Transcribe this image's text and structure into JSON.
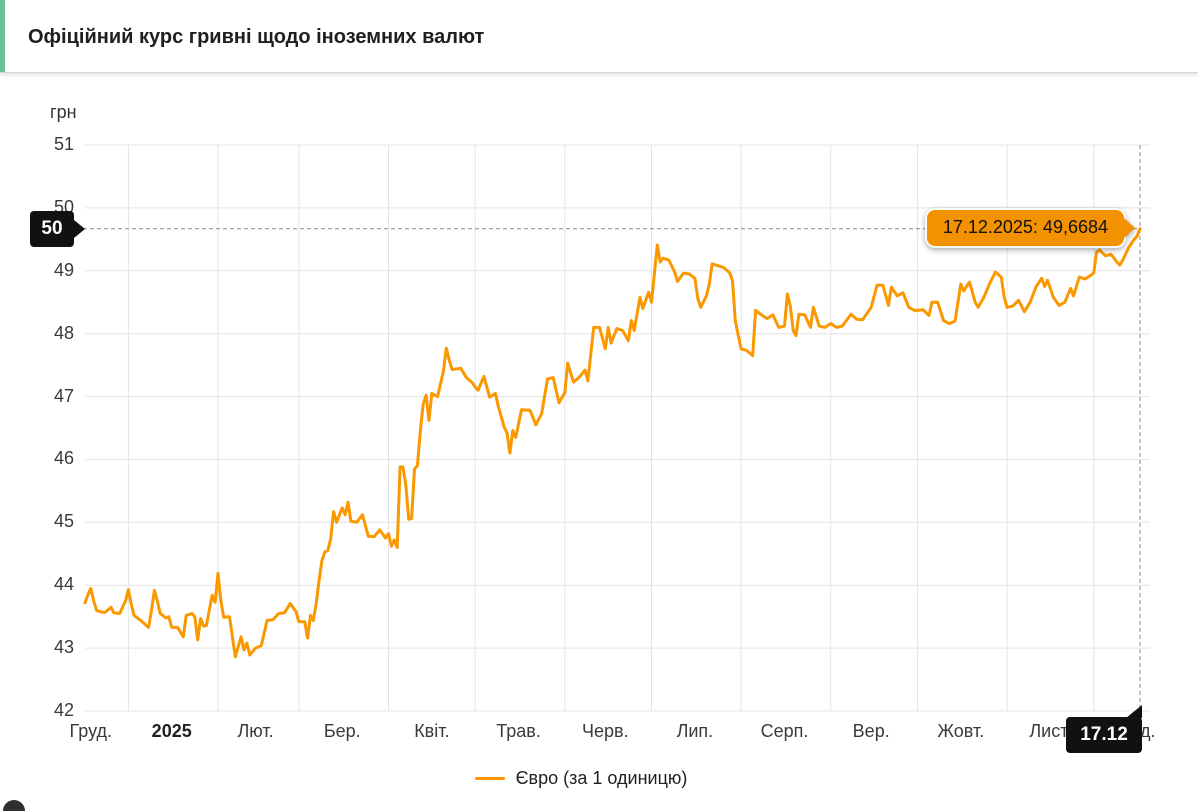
{
  "header": {
    "title": "Офіційний курс гривні щодо іноземних валют"
  },
  "chart": {
    "unit_label": "грн"
  },
  "crosshair": {
    "y_label": "50",
    "x_label": "17.12"
  },
  "tooltip": {
    "text": "17.12.2025: 49,6684"
  },
  "legend": {
    "items": [
      {
        "label": "Євро (за 1 одиницю)",
        "color": "#fb9800"
      }
    ]
  },
  "colors": {
    "accent_green": "#68c295",
    "line_orange": "#fb9800",
    "tooltip_orange": "#f39200",
    "grid": "#e4e4e4",
    "crosshair": "#8a8a8a",
    "badge_black": "#111111"
  },
  "chart_data": {
    "type": "line",
    "title": "Офіційний курс гривні щодо іноземних валют",
    "ylabel": "грн",
    "ylim": [
      42,
      51
    ],
    "y_ticks": [
      42,
      43,
      44,
      45,
      46,
      47,
      48,
      49,
      50,
      51
    ],
    "xlim": [
      "2024-12-17",
      "2025-12-17"
    ],
    "x_gridlines": [
      "2025-01-01",
      "2025-02-01",
      "2025-03-01",
      "2025-04-01",
      "2025-05-01",
      "2025-06-01",
      "2025-07-01",
      "2025-08-01",
      "2025-09-01",
      "2025-10-01",
      "2025-11-01",
      "2025-12-01"
    ],
    "x_ticks": [
      {
        "label": "Груд.",
        "center": "2024-12-19",
        "bold": false
      },
      {
        "label": "2025",
        "center": "2025-01-16",
        "bold": true
      },
      {
        "label": "Лют.",
        "center": "2025-02-14",
        "bold": false
      },
      {
        "label": "Бер.",
        "center": "2025-03-16",
        "bold": false
      },
      {
        "label": "Квіт.",
        "center": "2025-04-16",
        "bold": false
      },
      {
        "label": "Трав.",
        "center": "2025-05-16",
        "bold": false
      },
      {
        "label": "Черв.",
        "center": "2025-06-15",
        "bold": false
      },
      {
        "label": "Лип.",
        "center": "2025-07-16",
        "bold": false
      },
      {
        "label": "Серп.",
        "center": "2025-08-16",
        "bold": false
      },
      {
        "label": "Вер.",
        "center": "2025-09-15",
        "bold": false
      },
      {
        "label": "Жовт.",
        "center": "2025-10-16",
        "bold": false
      },
      {
        "label": "Лист.",
        "center": "2025-11-16",
        "bold": false
      },
      {
        "label": "Груд.",
        "center": "2025-12-15",
        "bold": false
      }
    ],
    "legend_position": "bottom",
    "grid": true,
    "last_point": {
      "date": "2025-12-17",
      "value": 49.6684,
      "display": "17.12.2025: 49,6684"
    },
    "series": [
      {
        "name": "Євро (за 1 одиницю)",
        "color": "#fb9800",
        "points": [
          [
            "2024-12-17",
            43.72
          ],
          [
            "2024-12-18",
            43.85
          ],
          [
            "2024-12-19",
            43.95
          ],
          [
            "2024-12-20",
            43.75
          ],
          [
            "2024-12-21",
            43.6
          ],
          [
            "2024-12-23",
            43.57
          ],
          [
            "2024-12-24",
            43.57
          ],
          [
            "2024-12-26",
            43.65
          ],
          [
            "2024-12-27",
            43.56
          ],
          [
            "2024-12-29",
            43.55
          ],
          [
            "2024-12-31",
            43.75
          ],
          [
            "2025-01-01",
            43.93
          ],
          [
            "2025-01-02",
            43.7
          ],
          [
            "2025-01-03",
            43.52
          ],
          [
            "2025-01-05",
            43.45
          ],
          [
            "2025-01-08",
            43.33
          ],
          [
            "2025-01-09",
            43.6
          ],
          [
            "2025-01-10",
            43.92
          ],
          [
            "2025-01-11",
            43.75
          ],
          [
            "2025-01-12",
            43.55
          ],
          [
            "2025-01-14",
            43.48
          ],
          [
            "2025-01-15",
            43.5
          ],
          [
            "2025-01-16",
            43.33
          ],
          [
            "2025-01-18",
            43.33
          ],
          [
            "2025-01-20",
            43.18
          ],
          [
            "2025-01-21",
            43.52
          ],
          [
            "2025-01-23",
            43.55
          ],
          [
            "2025-01-24",
            43.5
          ],
          [
            "2025-01-25",
            43.13
          ],
          [
            "2025-01-26",
            43.47
          ],
          [
            "2025-01-27",
            43.35
          ],
          [
            "2025-01-28",
            43.36
          ],
          [
            "2025-01-30",
            43.84
          ],
          [
            "2025-01-31",
            43.73
          ],
          [
            "2025-02-01",
            44.19
          ],
          [
            "2025-02-02",
            43.76
          ],
          [
            "2025-02-03",
            43.49
          ],
          [
            "2025-02-05",
            43.5
          ],
          [
            "2025-02-07",
            42.86
          ],
          [
            "2025-02-09",
            43.18
          ],
          [
            "2025-02-10",
            42.97
          ],
          [
            "2025-02-11",
            43.08
          ],
          [
            "2025-02-12",
            42.89
          ],
          [
            "2025-02-14",
            43.0
          ],
          [
            "2025-02-16",
            43.04
          ],
          [
            "2025-02-18",
            43.44
          ],
          [
            "2025-02-20",
            43.45
          ],
          [
            "2025-02-22",
            43.55
          ],
          [
            "2025-02-24",
            43.56
          ],
          [
            "2025-02-26",
            43.71
          ],
          [
            "2025-02-28",
            43.58
          ],
          [
            "2025-03-01",
            43.42
          ],
          [
            "2025-03-03",
            43.42
          ],
          [
            "2025-03-04",
            43.16
          ],
          [
            "2025-03-05",
            43.52
          ],
          [
            "2025-03-06",
            43.44
          ],
          [
            "2025-03-07",
            43.71
          ],
          [
            "2025-03-08",
            44.08
          ],
          [
            "2025-03-09",
            44.4
          ],
          [
            "2025-03-10",
            44.53
          ],
          [
            "2025-03-11",
            44.55
          ],
          [
            "2025-03-12",
            44.74
          ],
          [
            "2025-03-13",
            45.17
          ],
          [
            "2025-03-14",
            45.0
          ],
          [
            "2025-03-16",
            45.23
          ],
          [
            "2025-03-17",
            45.12
          ],
          [
            "2025-03-18",
            45.32
          ],
          [
            "2025-03-19",
            45.02
          ],
          [
            "2025-03-21",
            45.0
          ],
          [
            "2025-03-23",
            45.12
          ],
          [
            "2025-03-25",
            44.78
          ],
          [
            "2025-03-27",
            44.77
          ],
          [
            "2025-03-29",
            44.88
          ],
          [
            "2025-03-31",
            44.75
          ],
          [
            "2025-04-01",
            44.82
          ],
          [
            "2025-04-02",
            44.62
          ],
          [
            "2025-04-03",
            44.72
          ],
          [
            "2025-04-04",
            44.6
          ],
          [
            "2025-04-05",
            45.88
          ],
          [
            "2025-04-06",
            45.88
          ],
          [
            "2025-04-07",
            45.6
          ],
          [
            "2025-04-08",
            45.05
          ],
          [
            "2025-04-09",
            45.06
          ],
          [
            "2025-04-10",
            45.85
          ],
          [
            "2025-04-11",
            45.9
          ],
          [
            "2025-04-12",
            46.45
          ],
          [
            "2025-04-13",
            46.88
          ],
          [
            "2025-04-14",
            47.02
          ],
          [
            "2025-04-15",
            46.62
          ],
          [
            "2025-04-16",
            47.05
          ],
          [
            "2025-04-18",
            47.0
          ],
          [
            "2025-04-20",
            47.4
          ],
          [
            "2025-04-21",
            47.77
          ],
          [
            "2025-04-22",
            47.58
          ],
          [
            "2025-04-23",
            47.43
          ],
          [
            "2025-04-26",
            47.45
          ],
          [
            "2025-04-28",
            47.3
          ],
          [
            "2025-04-30",
            47.22
          ],
          [
            "2025-05-01",
            47.15
          ],
          [
            "2025-05-02",
            47.1
          ],
          [
            "2025-05-04",
            47.32
          ],
          [
            "2025-05-06",
            46.99
          ],
          [
            "2025-05-08",
            47.05
          ],
          [
            "2025-05-09",
            46.84
          ],
          [
            "2025-05-11",
            46.52
          ],
          [
            "2025-05-12",
            46.42
          ],
          [
            "2025-05-13",
            46.1
          ],
          [
            "2025-05-14",
            46.46
          ],
          [
            "2025-05-15",
            46.35
          ],
          [
            "2025-05-17",
            46.79
          ],
          [
            "2025-05-20",
            46.78
          ],
          [
            "2025-05-22",
            46.55
          ],
          [
            "2025-05-24",
            46.73
          ],
          [
            "2025-05-26",
            47.28
          ],
          [
            "2025-05-28",
            47.3
          ],
          [
            "2025-05-30",
            46.9
          ],
          [
            "2025-06-01",
            47.06
          ],
          [
            "2025-06-02",
            47.53
          ],
          [
            "2025-06-04",
            47.23
          ],
          [
            "2025-06-06",
            47.31
          ],
          [
            "2025-06-08",
            47.42
          ],
          [
            "2025-06-09",
            47.25
          ],
          [
            "2025-06-11",
            48.1
          ],
          [
            "2025-06-13",
            48.1
          ],
          [
            "2025-06-15",
            47.76
          ],
          [
            "2025-06-16",
            48.1
          ],
          [
            "2025-06-17",
            47.85
          ],
          [
            "2025-06-19",
            48.08
          ],
          [
            "2025-06-21",
            48.05
          ],
          [
            "2025-06-23",
            47.89
          ],
          [
            "2025-06-24",
            48.21
          ],
          [
            "2025-06-25",
            48.05
          ],
          [
            "2025-06-27",
            48.58
          ],
          [
            "2025-06-28",
            48.4
          ],
          [
            "2025-06-30",
            48.66
          ],
          [
            "2025-07-01",
            48.5
          ],
          [
            "2025-07-03",
            49.41
          ],
          [
            "2025-07-04",
            49.14
          ],
          [
            "2025-07-05",
            49.2
          ],
          [
            "2025-07-07",
            49.17
          ],
          [
            "2025-07-09",
            48.98
          ],
          [
            "2025-07-10",
            48.83
          ],
          [
            "2025-07-12",
            48.96
          ],
          [
            "2025-07-14",
            48.95
          ],
          [
            "2025-07-16",
            48.88
          ],
          [
            "2025-07-17",
            48.56
          ],
          [
            "2025-07-18",
            48.42
          ],
          [
            "2025-07-20",
            48.6
          ],
          [
            "2025-07-21",
            48.79
          ],
          [
            "2025-07-22",
            49.11
          ],
          [
            "2025-07-24",
            49.08
          ],
          [
            "2025-07-26",
            49.05
          ],
          [
            "2025-07-28",
            48.97
          ],
          [
            "2025-07-29",
            48.84
          ],
          [
            "2025-07-30",
            48.21
          ],
          [
            "2025-07-31",
            47.98
          ],
          [
            "2025-08-01",
            47.76
          ],
          [
            "2025-08-03",
            47.73
          ],
          [
            "2025-08-05",
            47.65
          ],
          [
            "2025-08-06",
            48.37
          ],
          [
            "2025-08-08",
            48.3
          ],
          [
            "2025-08-10",
            48.24
          ],
          [
            "2025-08-12",
            48.3
          ],
          [
            "2025-08-14",
            48.1
          ],
          [
            "2025-08-16",
            48.12
          ],
          [
            "2025-08-17",
            48.63
          ],
          [
            "2025-08-18",
            48.44
          ],
          [
            "2025-08-19",
            48.05
          ],
          [
            "2025-08-20",
            47.97
          ],
          [
            "2025-08-21",
            48.31
          ],
          [
            "2025-08-23",
            48.3
          ],
          [
            "2025-08-25",
            48.1
          ],
          [
            "2025-08-26",
            48.42
          ],
          [
            "2025-08-28",
            48.12
          ],
          [
            "2025-08-30",
            48.1
          ],
          [
            "2025-09-01",
            48.16
          ],
          [
            "2025-09-03",
            48.1
          ],
          [
            "2025-09-05",
            48.12
          ],
          [
            "2025-09-08",
            48.31
          ],
          [
            "2025-09-10",
            48.23
          ],
          [
            "2025-09-12",
            48.22
          ],
          [
            "2025-09-15",
            48.42
          ],
          [
            "2025-09-17",
            48.77
          ],
          [
            "2025-09-19",
            48.77
          ],
          [
            "2025-09-21",
            48.45
          ],
          [
            "2025-09-22",
            48.74
          ],
          [
            "2025-09-24",
            48.6
          ],
          [
            "2025-09-26",
            48.65
          ],
          [
            "2025-09-28",
            48.42
          ],
          [
            "2025-09-30",
            48.37
          ],
          [
            "2025-10-01",
            48.37
          ],
          [
            "2025-10-03",
            48.38
          ],
          [
            "2025-10-05",
            48.29
          ],
          [
            "2025-10-06",
            48.5
          ],
          [
            "2025-10-08",
            48.5
          ],
          [
            "2025-10-10",
            48.21
          ],
          [
            "2025-10-12",
            48.16
          ],
          [
            "2025-10-14",
            48.2
          ],
          [
            "2025-10-16",
            48.79
          ],
          [
            "2025-10-17",
            48.68
          ],
          [
            "2025-10-19",
            48.82
          ],
          [
            "2025-10-21",
            48.5
          ],
          [
            "2025-10-22",
            48.42
          ],
          [
            "2025-10-24",
            48.58
          ],
          [
            "2025-10-26",
            48.8
          ],
          [
            "2025-10-28",
            48.98
          ],
          [
            "2025-10-30",
            48.9
          ],
          [
            "2025-10-31",
            48.58
          ],
          [
            "2025-11-01",
            48.42
          ],
          [
            "2025-11-03",
            48.44
          ],
          [
            "2025-11-05",
            48.53
          ],
          [
            "2025-11-07",
            48.35
          ],
          [
            "2025-11-09",
            48.5
          ],
          [
            "2025-11-11",
            48.74
          ],
          [
            "2025-11-13",
            48.88
          ],
          [
            "2025-11-14",
            48.75
          ],
          [
            "2025-11-15",
            48.85
          ],
          [
            "2025-11-17",
            48.58
          ],
          [
            "2025-11-19",
            48.45
          ],
          [
            "2025-11-21",
            48.5
          ],
          [
            "2025-11-23",
            48.72
          ],
          [
            "2025-11-24",
            48.6
          ],
          [
            "2025-11-26",
            48.9
          ],
          [
            "2025-11-28",
            48.87
          ],
          [
            "2025-11-30",
            48.93
          ],
          [
            "2025-12-01",
            48.97
          ],
          [
            "2025-12-02",
            49.3
          ],
          [
            "2025-12-03",
            49.33
          ],
          [
            "2025-12-05",
            49.24
          ],
          [
            "2025-12-07",
            49.26
          ],
          [
            "2025-12-09",
            49.14
          ],
          [
            "2025-12-10",
            49.09
          ],
          [
            "2025-12-11",
            49.17
          ],
          [
            "2025-12-13",
            49.36
          ],
          [
            "2025-12-15",
            49.5
          ],
          [
            "2025-12-16",
            49.55
          ],
          [
            "2025-12-17",
            49.6684
          ]
        ]
      }
    ]
  }
}
